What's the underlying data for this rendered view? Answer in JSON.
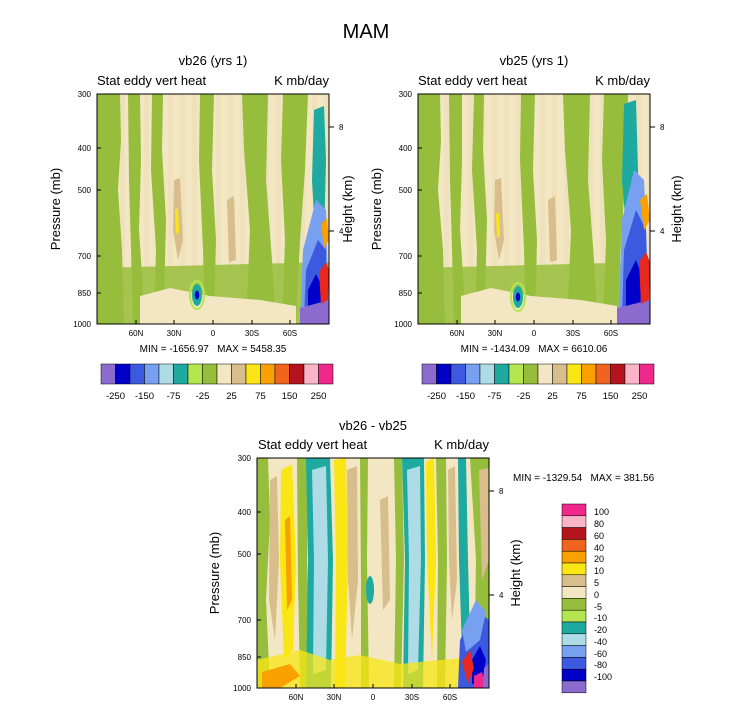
{
  "figure_title": "MAM",
  "palette": {
    "purple": "#8C6BCF",
    "navy": "#0000C8",
    "blue": "#3C5AE0",
    "lightblue": "#78A0F0",
    "paleblue": "#AEDCE6",
    "teal": "#1EAAA0",
    "lightgreen": "#B4E650",
    "green": "#96BE3C",
    "cream": "#F3E6C3",
    "tan": "#D7BE8C",
    "yellow": "#FAE614",
    "orange": "#FAA000",
    "deeporange": "#F0641E",
    "red": "#E6281E",
    "darkred": "#B4141E",
    "pink": "#FAB4C8",
    "magenta": "#F0288C"
  },
  "chart_data": [
    {
      "type": "heatmap",
      "title": "vb26 (yrs 1)",
      "left_label": "Stat eddy vert heat",
      "right_label": "K mb/day",
      "ylabel": "Pressure (mb)",
      "ylabel_right": "Height (km)",
      "x_ticks": [
        "60N",
        "30N",
        "0",
        "30S",
        "60S"
      ],
      "x_tick_lats": [
        60,
        30,
        0,
        -30,
        -60
      ],
      "xlim": [
        90,
        -90
      ],
      "y_ticks": [
        "300",
        "400",
        "500",
        "700",
        "850",
        "1000"
      ],
      "y_tick_values": [
        300,
        400,
        500,
        700,
        850,
        1000
      ],
      "ylim": [
        300,
        1000
      ],
      "y2_ticks": [
        "8",
        "4"
      ],
      "y2_tick_values": [
        8,
        4
      ],
      "min_max": "MIN = -1656.97   MAX = 5458.35",
      "min": -1656.97,
      "max": 5458.35,
      "colorbar_labels": [
        "-250",
        "-150",
        "-75",
        "-25",
        "25",
        "75",
        "150",
        "250"
      ],
      "colorbar_levels": [
        -250,
        -200,
        -150,
        -100,
        -75,
        -50,
        -25,
        0,
        25,
        50,
        75,
        100,
        150,
        200,
        250
      ]
    },
    {
      "type": "heatmap",
      "title": "vb25 (yrs 1)",
      "left_label": "Stat eddy vert heat",
      "right_label": "K mb/day",
      "ylabel": "Pressure (mb)",
      "ylabel_right": "Height (km)",
      "x_ticks": [
        "60N",
        "30N",
        "0",
        "30S",
        "60S"
      ],
      "x_tick_lats": [
        60,
        30,
        0,
        -30,
        -60
      ],
      "xlim": [
        90,
        -90
      ],
      "y_ticks": [
        "300",
        "400",
        "500",
        "700",
        "850",
        "1000"
      ],
      "y_tick_values": [
        300,
        400,
        500,
        700,
        850,
        1000
      ],
      "ylim": [
        300,
        1000
      ],
      "y2_ticks": [
        "8",
        "4"
      ],
      "y2_tick_values": [
        8,
        4
      ],
      "min_max": "MIN = -1434.09   MAX = 6610.06",
      "min": -1434.09,
      "max": 6610.06,
      "colorbar_labels": [
        "-250",
        "-150",
        "-75",
        "-25",
        "25",
        "75",
        "150",
        "250"
      ],
      "colorbar_levels": [
        -250,
        -200,
        -150,
        -100,
        -75,
        -50,
        -25,
        0,
        25,
        50,
        75,
        100,
        150,
        200,
        250
      ]
    },
    {
      "type": "heatmap",
      "title": "vb26 - vb25",
      "left_label": "Stat eddy vert heat",
      "right_label": "K mb/day",
      "ylabel": "Pressure (mb)",
      "ylabel_right": "Height (km)",
      "x_ticks": [
        "60N",
        "30N",
        "0",
        "30S",
        "60S"
      ],
      "x_tick_lats": [
        60,
        30,
        0,
        -30,
        -60
      ],
      "xlim": [
        90,
        -90
      ],
      "y_ticks": [
        "300",
        "400",
        "500",
        "700",
        "850",
        "1000"
      ],
      "y_tick_values": [
        300,
        400,
        500,
        700,
        850,
        1000
      ],
      "ylim": [
        300,
        1000
      ],
      "y2_ticks": [
        "8",
        "4"
      ],
      "y2_tick_values": [
        8,
        4
      ],
      "min_max": "MIN = -1329.54   MAX = 381.56",
      "min": -1329.54,
      "max": 381.56,
      "colorbar_labels": [
        "100",
        "80",
        "60",
        "40",
        "20",
        "10",
        "5",
        "0",
        "-5",
        "-10",
        "-20",
        "-40",
        "-60",
        "-80",
        "-100"
      ],
      "colorbar_levels": [
        100,
        80,
        60,
        40,
        20,
        10,
        5,
        0,
        -5,
        -10,
        -20,
        -40,
        -60,
        -80,
        -100
      ]
    }
  ]
}
